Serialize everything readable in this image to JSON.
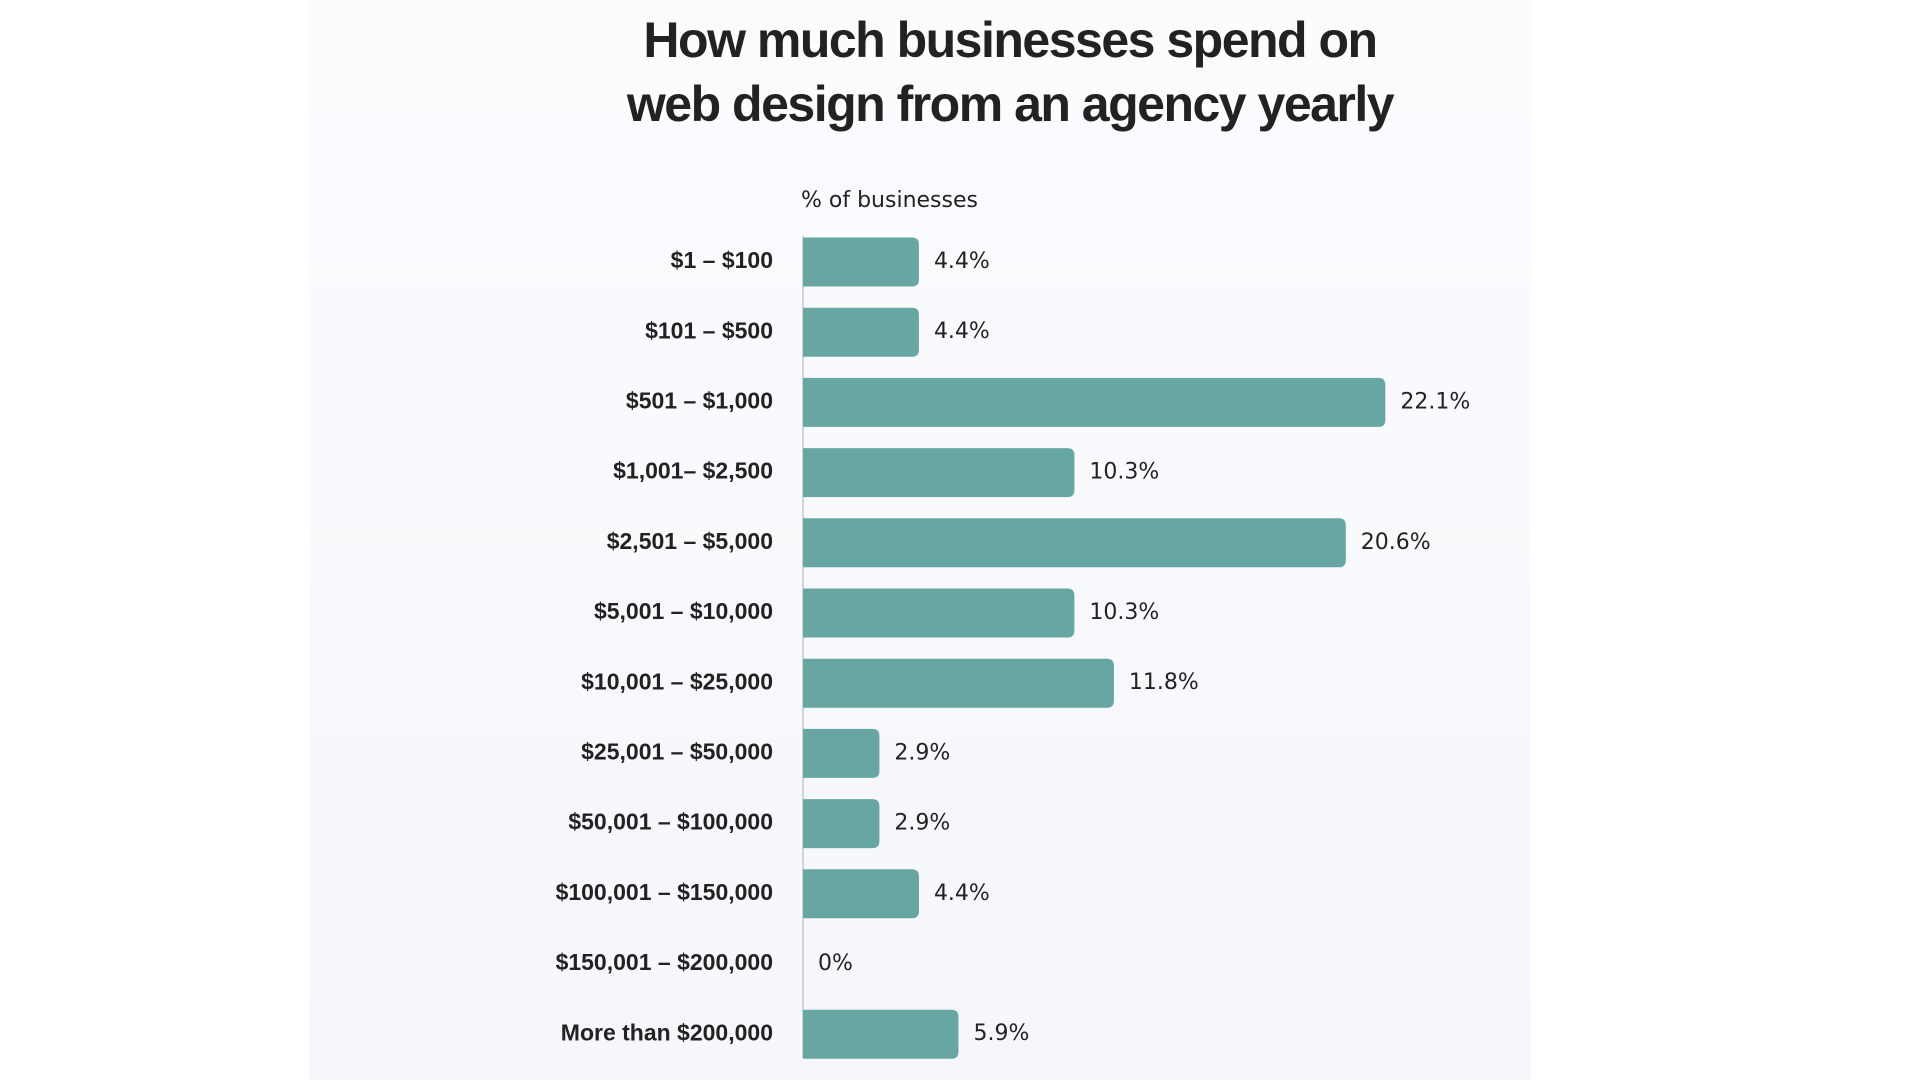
{
  "chart_data": {
    "type": "bar",
    "orientation": "horizontal",
    "title": "How much businesses spend on web design from an agency yearly",
    "axis_label": "% of businesses",
    "categories": [
      "$1 – $100",
      "$101 – $500",
      "$501 – $1,000",
      "$1,001– $2,500",
      "$2,501 – $5,000",
      "$5,001 – $10,000",
      "$10,001 – $25,000",
      "$25,001 – $50,000",
      "$50,001 – $100,000",
      "$100,001 – $150,000",
      "$150,001 – $200,000",
      "More than $200,000"
    ],
    "values": [
      4.4,
      4.4,
      22.1,
      10.3,
      20.6,
      10.3,
      11.8,
      2.9,
      2.9,
      4.4,
      0,
      5.9
    ],
    "value_labels": [
      "4.4%",
      "4.4%",
      "22.1%",
      "10.3%",
      "20.6%",
      "10.3%",
      "11.8%",
      "2.9%",
      "2.9%",
      "4.4%",
      "0%",
      "5.9%"
    ],
    "color": "#68a6a3"
  }
}
